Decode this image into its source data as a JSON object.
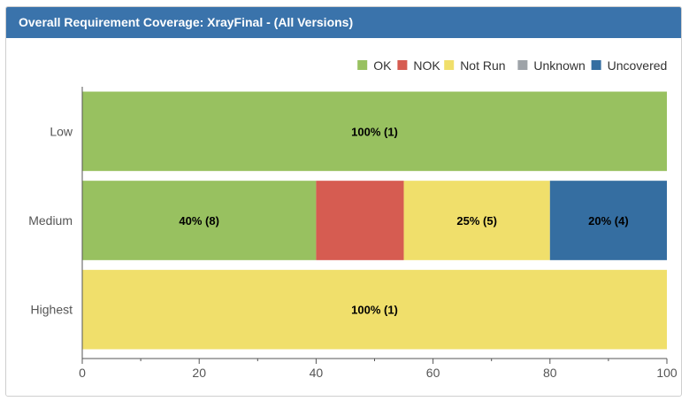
{
  "panel": {
    "title": "Overall Requirement Coverage: XrayFinal - (All Versions)"
  },
  "chart_data": {
    "type": "bar",
    "orientation": "horizontal",
    "stacked": true,
    "title": "",
    "xlabel": "",
    "ylabel": "",
    "categories": [
      "Low",
      "Medium",
      "Highest"
    ],
    "series": [
      {
        "name": "OK",
        "color": "#98c160",
        "values": [
          100,
          40,
          0
        ],
        "labels": [
          "100% (1)",
          "40% (8)",
          ""
        ]
      },
      {
        "name": "NOK",
        "color": "#d65c51",
        "values": [
          0,
          15,
          0
        ],
        "labels": [
          "",
          "",
          ""
        ]
      },
      {
        "name": "Not Run",
        "color": "#f0df6b",
        "values": [
          0,
          25,
          100
        ],
        "labels": [
          "",
          "25% (5)",
          "100% (1)"
        ]
      },
      {
        "name": "Unknown",
        "color": "#9ea3a8",
        "values": [
          0,
          0,
          0
        ],
        "labels": [
          "",
          "",
          ""
        ]
      },
      {
        "name": "Uncovered",
        "color": "#356ea1",
        "values": [
          0,
          20,
          0
        ],
        "labels": [
          "",
          "20% (4)",
          ""
        ]
      }
    ],
    "xlim": [
      0,
      100
    ],
    "xticks": [
      0,
      20,
      40,
      60,
      80,
      100
    ],
    "grid": false,
    "legend_position": "top-right"
  }
}
